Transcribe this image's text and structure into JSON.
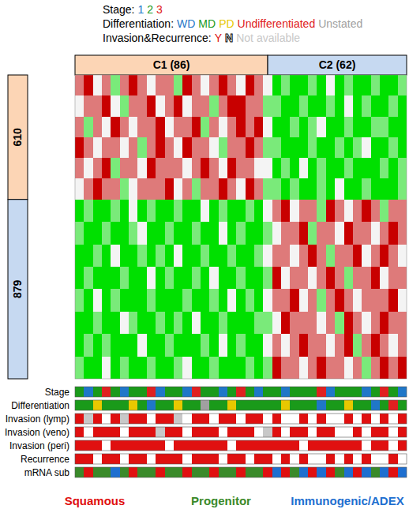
{
  "chart_data": {
    "type": "heatmap",
    "zlim": [
      -2,
      2
    ],
    "colors": [
      "#00e000",
      "#f4f4f4",
      "#c80000"
    ],
    "column_clusters": [
      {
        "label": "C1 (86)",
        "count": 86,
        "color": "#fcd5b5"
      },
      {
        "label": "C2 (62)",
        "count": 62,
        "color": "#c6d9f1"
      }
    ],
    "row_clusters": [
      {
        "count": 610,
        "color": "#fcd5b5",
        "values": [
          [
            1,
            2,
            0,
            1,
            -1,
            1,
            2,
            1,
            0,
            1,
            1,
            -1,
            2,
            1,
            0,
            1,
            2,
            1,
            0,
            2,
            1,
            0,
            -2,
            -1,
            -2,
            -2,
            -1,
            -2,
            0,
            -2,
            -1,
            -2,
            -2,
            -1,
            -2,
            -2,
            -1
          ],
          [
            0,
            1,
            1,
            2,
            0,
            -1,
            1,
            1,
            2,
            0,
            1,
            2,
            0,
            1,
            1,
            -1,
            1,
            2,
            2,
            1,
            1,
            -1,
            -1,
            -2,
            -2,
            -1,
            -2,
            -2,
            -1,
            -2,
            0,
            -2,
            -1,
            -2,
            -2,
            -1,
            -2
          ],
          [
            1,
            -1,
            1,
            0,
            2,
            1,
            0,
            1,
            1,
            2,
            0,
            1,
            1,
            2,
            -1,
            1,
            0,
            1,
            2,
            1,
            2,
            0,
            -2,
            -2,
            -1,
            -2,
            -1,
            0,
            -2,
            -2,
            -1,
            -2,
            -2,
            -1,
            -1,
            -2,
            -2
          ],
          [
            2,
            1,
            0,
            1,
            1,
            0,
            1,
            -1,
            1,
            2,
            1,
            0,
            2,
            1,
            1,
            0,
            -1,
            1,
            1,
            2,
            1,
            -1,
            -1,
            -2,
            -2,
            -2,
            -1,
            -2,
            -2,
            -1,
            -2,
            -1,
            0,
            -2,
            -2,
            -1,
            -2
          ],
          [
            1,
            0,
            1,
            2,
            -1,
            1,
            1,
            0,
            2,
            1,
            1,
            1,
            0,
            1,
            2,
            1,
            0,
            2,
            1,
            1,
            0,
            0,
            -2,
            -1,
            -2,
            0,
            -2,
            -1,
            -2,
            -2,
            -1,
            -2,
            -2,
            -2,
            -1,
            -2,
            -1
          ],
          [
            0,
            1,
            2,
            1,
            1,
            -1,
            0,
            1,
            1,
            1,
            2,
            0,
            1,
            -1,
            1,
            1,
            2,
            1,
            0,
            2,
            1,
            -1,
            -1,
            -2,
            -1,
            -2,
            -2,
            -1,
            -2,
            0,
            -2,
            -2,
            -1,
            -2,
            -2,
            -2,
            -1
          ]
        ]
      },
      {
        "count": 879,
        "color": "#c6d9f1",
        "values": [
          [
            -2,
            -1,
            -2,
            -2,
            -1,
            -2,
            0,
            -2,
            -1,
            -2,
            -2,
            -1,
            -2,
            -2,
            0,
            -2,
            -1,
            -2,
            -2,
            -1,
            -2,
            0,
            1,
            2,
            0,
            1,
            1,
            -1,
            2,
            1,
            0,
            1,
            2,
            1,
            -1,
            1,
            1
          ],
          [
            -1,
            -2,
            -2,
            -1,
            -2,
            -2,
            -1,
            0,
            -2,
            -2,
            -1,
            -2,
            -2,
            -1,
            -2,
            -2,
            0,
            -2,
            -1,
            -2,
            -2,
            -1,
            0,
            1,
            1,
            2,
            -1,
            1,
            1,
            0,
            2,
            1,
            1,
            0,
            1,
            2,
            1
          ],
          [
            -2,
            -2,
            -1,
            -2,
            0,
            -2,
            -2,
            -1,
            -2,
            -1,
            -2,
            0,
            -2,
            -2,
            -1,
            -2,
            -2,
            -1,
            -2,
            -2,
            -1,
            0,
            1,
            1,
            0,
            1,
            2,
            1,
            -1,
            1,
            1,
            2,
            0,
            1,
            2,
            1,
            0
          ],
          [
            -2,
            -1,
            -2,
            -2,
            -2,
            -1,
            -2,
            -2,
            0,
            -2,
            -1,
            -2,
            -2,
            -1,
            -2,
            0,
            -2,
            -2,
            -1,
            -2,
            -2,
            -1,
            2,
            0,
            1,
            1,
            0,
            1,
            2,
            1,
            -1,
            1,
            1,
            2,
            0,
            1,
            1
          ],
          [
            -1,
            -2,
            0,
            -2,
            -1,
            -2,
            -2,
            -2,
            -1,
            -2,
            -2,
            -2,
            -1,
            -2,
            -2,
            -1,
            -2,
            0,
            -2,
            -1,
            -2,
            0,
            1,
            1,
            2,
            0,
            1,
            -1,
            1,
            2,
            1,
            0,
            1,
            1,
            1,
            2,
            0
          ],
          [
            -2,
            -2,
            -1,
            -2,
            -2,
            0,
            -1,
            -2,
            -2,
            -1,
            -2,
            -1,
            -2,
            0,
            -2,
            -2,
            -1,
            -2,
            -2,
            -2,
            -1,
            -1,
            0,
            2,
            1,
            1,
            1,
            0,
            1,
            -1,
            2,
            1,
            0,
            1,
            2,
            1,
            1
          ],
          [
            -2,
            -1,
            -2,
            -1,
            -2,
            -2,
            -2,
            0,
            -2,
            -2,
            -1,
            -2,
            -2,
            -2,
            -1,
            -2,
            0,
            -2,
            -1,
            -2,
            -2,
            0,
            1,
            0,
            1,
            2,
            1,
            1,
            0,
            1,
            2,
            -1,
            1,
            2,
            1,
            0,
            1
          ],
          [
            -1,
            -2,
            -2,
            0,
            -2,
            -1,
            -2,
            -2,
            -1,
            -2,
            -2,
            -1,
            0,
            -2,
            -2,
            -1,
            -2,
            -2,
            -2,
            -1,
            -2,
            -1,
            2,
            1,
            1,
            0,
            1,
            2,
            1,
            1,
            0,
            1,
            -1,
            1,
            2,
            1,
            2
          ]
        ]
      }
    ],
    "legends": [
      {
        "title": "Stage:",
        "items": [
          {
            "label": "1",
            "color": "#1f77c8"
          },
          {
            "label": "2",
            "color": "#1a9a1a"
          },
          {
            "label": "3",
            "color": "#e02020"
          }
        ],
        "tracks": [
          {
            "name": "Stage",
            "values": [
              "2",
              "1",
              "2",
              "3",
              "2",
              "1",
              "2",
              "2",
              "3",
              "1",
              "2",
              "2",
              "1",
              "3",
              "2",
              "2",
              "1",
              "2",
              "3",
              "2",
              "1",
              "2",
              "2",
              "1",
              "2",
              "2",
              "2",
              "3",
              "1",
              "2",
              "2",
              "2",
              "1",
              "2",
              "3",
              "2",
              "1"
            ]
          }
        ]
      },
      {
        "title": "Differentiation:",
        "items": [
          {
            "label": "WD",
            "color": "#1f77c8"
          },
          {
            "label": "MD",
            "color": "#1a9a1a"
          },
          {
            "label": "PD",
            "color": "#e8c800"
          },
          {
            "label": "Undifferentiated",
            "color": "#e02020"
          },
          {
            "label": "Unstated",
            "color": "#a0a0a0"
          }
        ],
        "tracks": [
          {
            "name": "Differentiation",
            "values": [
              "MD",
              "MD",
              "PD",
              "MD",
              "MD",
              "MD",
              "PD",
              "MD",
              "WD",
              "MD",
              "MD",
              "PD",
              "MD",
              "MD",
              "Unstated",
              "MD",
              "MD",
              "PD",
              "MD",
              "MD",
              "MD",
              "MD",
              "MD",
              "PD",
              "MD",
              "MD",
              "MD",
              "WD",
              "MD",
              "MD",
              "PD",
              "MD",
              "MD",
              "WD",
              "MD",
              "Undifferentiated",
              "MD"
            ]
          }
        ]
      },
      {
        "title": "Invasion&Recurrence:",
        "items": [
          {
            "label": "Y",
            "color": "#e01010"
          },
          {
            "label": "N",
            "color": "#ffffff"
          },
          {
            "label": "Not available",
            "color": "#c8c8c8"
          }
        ],
        "tracks": [
          {
            "name": "Invasion (lymp)",
            "values": [
              "Y",
              "Not available",
              "Y",
              "N",
              "Y",
              "Not available",
              "Y",
              "Y",
              "N",
              "Y",
              "Y",
              "Not available",
              "N",
              "Y",
              "Y",
              "N",
              "Y",
              "Y",
              "N",
              "Y",
              "Y",
              "N",
              "Y",
              "N",
              "N",
              "Y",
              "N",
              "Y",
              "N",
              "N",
              "Y",
              "N",
              "Y",
              "N",
              "Y",
              "N",
              "Y"
            ]
          },
          {
            "name": "Invasion (veno)",
            "values": [
              "Y",
              "N",
              "Y",
              "Y",
              "Y",
              "N",
              "Y",
              "Y",
              "Y",
              "Not available",
              "Y",
              "Y",
              "N",
              "Y",
              "Y",
              "Y",
              "N",
              "Y",
              "Y",
              "Y",
              "N",
              "Not available",
              "Y",
              "N",
              "Y",
              "Y",
              "N",
              "Y",
              "Y",
              "N",
              "N",
              "Y",
              "N",
              "Y",
              "Y",
              "N",
              "Y"
            ]
          },
          {
            "name": "Invasion (peri)",
            "values": [
              "Y",
              "Y",
              "Y",
              "N",
              "Y",
              "Y",
              "Y",
              "Y",
              "Y",
              "Y",
              "N",
              "Y",
              "Y",
              "Y",
              "Y",
              "Y",
              "Y",
              "N",
              "Y",
              "Y",
              "Y",
              "Y",
              "Y",
              "Y",
              "Y",
              "N",
              "Y",
              "Y",
              "Y",
              "Y",
              "Y",
              "Y",
              "N",
              "Y",
              "Y",
              "N",
              "Y"
            ]
          },
          {
            "name": "Recurrence",
            "values": [
              "Y",
              "Y",
              "N",
              "Y",
              "Y",
              "N",
              "Y",
              "Y",
              "N",
              "Y",
              "Y",
              "Y",
              "N",
              "Y",
              "Y",
              "Y",
              "N",
              "Y",
              "Y",
              "N",
              "Y",
              "Y",
              "N",
              "Y",
              "N",
              "Y",
              "N",
              "N",
              "Y",
              "N",
              "Y",
              "N",
              "Y",
              "N",
              "N",
              "Y",
              "N"
            ]
          }
        ]
      },
      {
        "items": [
          {
            "label": "Squamous",
            "color": "#e01010"
          },
          {
            "label": "Progenitor",
            "color": "#3a8a2a"
          },
          {
            "label": "Immunogenic/ADEX",
            "color": "#1e6fd0"
          }
        ],
        "tracks": [
          {
            "name": "mRNA sub",
            "values": [
              "Progenitor",
              "Squamous",
              "Progenitor",
              "Progenitor",
              "Immunogenic/ADEX",
              "Progenitor",
              "Squamous",
              "Progenitor",
              "Progenitor",
              "Squamous",
              "Progenitor",
              "Progenitor",
              "Squamous",
              "Progenitor",
              "Progenitor",
              "Squamous",
              "Progenitor",
              "Progenitor",
              "Squamous",
              "Progenitor",
              "Progenitor",
              "Squamous",
              "Immunogenic/ADEX",
              "Squamous",
              "Progenitor",
              "Immunogenic/ADEX",
              "Squamous",
              "Immunogenic/ADEX",
              "Squamous",
              "Progenitor",
              "Immunogenic/ADEX",
              "Squamous",
              "Immunogenic/ADEX",
              "Progenitor",
              "Immunogenic/ADEX",
              "Squamous",
              "Immunogenic/ADEX"
            ]
          }
        ]
      }
    ]
  }
}
